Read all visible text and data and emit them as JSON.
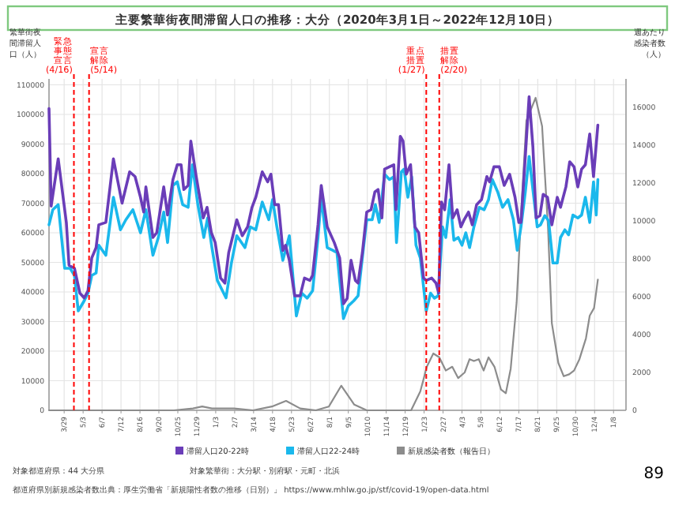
{
  "chart_data": {
    "type": "line",
    "title": "主要繁華街夜間滞留人口の推移：大分（2020年3月1日～2022年12月10日）",
    "ylabel": "繁華街夜間滞留人口（人）",
    "y2label": "週あたり感染者数（人）",
    "xlim": [
      "2020-03-01",
      "2023-01-31"
    ],
    "xticks": [
      {
        "value": "2020-03-29",
        "label": "3/29"
      },
      {
        "value": "2020-05-03",
        "label": "5/3"
      },
      {
        "value": "2020-06-07",
        "label": "6/7"
      },
      {
        "value": "2020-07-12",
        "label": "7/12"
      },
      {
        "value": "2020-08-16",
        "label": "8/16"
      },
      {
        "value": "2020-09-20",
        "label": "9/20"
      },
      {
        "value": "2020-10-25",
        "label": "10/25"
      },
      {
        "value": "2020-11-29",
        "label": "11/29"
      },
      {
        "value": "2021-01-03",
        "label": "1/3"
      },
      {
        "value": "2021-02-07",
        "label": "2/7"
      },
      {
        "value": "2021-03-14",
        "label": "3/14"
      },
      {
        "value": "2021-04-18",
        "label": "4/18"
      },
      {
        "value": "2021-05-23",
        "label": "5/23"
      },
      {
        "value": "2021-06-27",
        "label": "6/27"
      },
      {
        "value": "2021-08-01",
        "label": "8/1"
      },
      {
        "value": "2021-09-05",
        "label": "9/5"
      },
      {
        "value": "2021-10-10",
        "label": "10/10"
      },
      {
        "value": "2021-11-14",
        "label": "11/14"
      },
      {
        "value": "2021-12-19",
        "label": "12/19"
      },
      {
        "value": "2022-01-23",
        "label": "1/23"
      },
      {
        "value": "2022-02-27",
        "label": "2/27"
      },
      {
        "value": "2022-04-03",
        "label": "4/3"
      },
      {
        "value": "2022-05-08",
        "label": "5/8"
      },
      {
        "value": "2022-06-12",
        "label": "6/12"
      },
      {
        "value": "2022-07-17",
        "label": "7/17"
      },
      {
        "value": "2022-08-21",
        "label": "8/21"
      },
      {
        "value": "2022-09-25",
        "label": "9/25"
      },
      {
        "value": "2022-10-30",
        "label": "10/30"
      },
      {
        "value": "2022-12-04",
        "label": "12/4"
      },
      {
        "value": "2023-01-08",
        "label": "1/8"
      }
    ],
    "ylim": [
      0,
      112000
    ],
    "yticks": [
      0,
      10000,
      20000,
      30000,
      40000,
      50000,
      60000,
      70000,
      80000,
      90000,
      100000,
      110000
    ],
    "y2lim": [
      0,
      17500
    ],
    "y2ticks": [
      0,
      2000,
      4000,
      6000,
      8000,
      10000,
      12000,
      14000,
      16000
    ],
    "grid": true,
    "legend": "bottom",
    "ref_lines": [
      {
        "axis": "x",
        "value": "2020-04-16",
        "label": "緊急事態宣言(4/16)",
        "color": "#ff0000",
        "line_style": "dashed"
      },
      {
        "axis": "x",
        "value": "2020-05-14",
        "label": "宣言解除(5/14)",
        "color": "#ff0000",
        "line_style": "dashed"
      },
      {
        "axis": "x",
        "value": "2022-01-27",
        "label": "重点措置(1/27)",
        "color": "#ff0000",
        "line_style": "dashed"
      },
      {
        "axis": "x",
        "value": "2022-02-20",
        "label": "措置解除(2/20)",
        "color": "#ff0000",
        "line_style": "dashed"
      }
    ],
    "series": [
      {
        "name": "滞留人口20-22時",
        "color": "#6a3db8",
        "x": [
          "2020-03-01",
          "2020-03-05",
          "2020-03-18",
          "2020-04-02",
          "2020-04-07",
          "2020-04-17",
          "2020-04-27",
          "2020-05-05",
          "2020-05-12",
          "2020-05-19",
          "2020-05-27",
          "2020-06-01",
          "2020-06-14",
          "2020-06-28",
          "2020-07-14",
          "2020-07-28",
          "2020-08-07",
          "2020-08-17",
          "2020-08-23",
          "2020-08-27",
          "2020-09-09",
          "2020-09-16",
          "2020-09-29",
          "2020-10-06",
          "2020-10-16",
          "2020-10-24",
          "2020-10-31",
          "2020-11-05",
          "2020-11-13",
          "2020-11-18",
          "2020-11-28",
          "2020-12-11",
          "2020-12-18",
          "2020-12-26",
          "2021-01-02",
          "2021-01-12",
          "2021-01-20",
          "2021-01-27",
          "2021-02-11",
          "2021-02-21",
          "2021-03-03",
          "2021-03-11",
          "2021-03-18",
          "2021-03-30",
          "2021-04-09",
          "2021-04-15",
          "2021-04-22",
          "2021-04-29",
          "2021-05-07",
          "2021-05-12",
          "2021-05-19",
          "2021-05-29",
          "2021-06-08",
          "2021-06-16",
          "2021-06-26",
          "2021-07-01",
          "2021-07-11",
          "2021-07-17",
          "2021-07-28",
          "2021-08-10",
          "2021-08-20",
          "2021-08-27",
          "2021-09-03",
          "2021-09-10",
          "2021-09-18",
          "2021-09-23",
          "2021-10-01",
          "2021-10-09",
          "2021-10-17",
          "2021-10-24",
          "2021-10-30",
          "2021-11-06",
          "2021-11-11",
          "2021-11-20",
          "2021-11-28",
          "2021-12-02",
          "2021-12-10",
          "2021-12-15",
          "2021-12-21",
          "2021-12-29",
          "2022-01-06",
          "2022-01-13",
          "2022-01-22",
          "2022-01-27",
          "2022-02-06",
          "2022-02-14",
          "2022-02-19",
          "2022-02-24",
          "2022-03-02",
          "2022-03-10",
          "2022-03-17",
          "2022-03-25",
          "2022-04-01",
          "2022-04-07",
          "2022-04-15",
          "2022-04-22",
          "2022-04-30",
          "2022-05-09",
          "2022-05-19",
          "2022-05-24",
          "2022-06-01",
          "2022-06-11",
          "2022-06-20",
          "2022-06-30",
          "2022-07-10",
          "2022-07-17",
          "2022-07-21",
          "2022-07-29",
          "2022-08-05",
          "2022-08-12",
          "2022-08-18",
          "2022-08-25",
          "2022-08-31",
          "2022-09-08",
          "2022-09-16",
          "2022-09-26",
          "2022-10-02",
          "2022-10-12",
          "2022-10-19",
          "2022-10-27",
          "2022-11-03",
          "2022-11-10",
          "2022-11-17",
          "2022-11-25",
          "2022-12-02",
          "2022-12-10"
        ],
        "values": [
          102000,
          69000,
          85000,
          63500,
          49000,
          48000,
          39600,
          38000,
          40400,
          51500,
          55000,
          62700,
          63500,
          85000,
          70000,
          80600,
          79000,
          72000,
          67000,
          75500,
          58400,
          60000,
          75500,
          66000,
          78000,
          83000,
          83000,
          74600,
          76000,
          91000,
          79000,
          65000,
          68600,
          60000,
          56700,
          44700,
          43000,
          53300,
          64400,
          59000,
          62000,
          68600,
          72000,
          80600,
          77200,
          79800,
          69500,
          69500,
          54000,
          55800,
          50700,
          38700,
          38700,
          44700,
          43900,
          45600,
          62700,
          76000,
          62000,
          56700,
          51500,
          36000,
          37900,
          50700,
          43900,
          43000,
          53300,
          67000,
          67800,
          73800,
          74600,
          65000,
          81500,
          82300,
          83000,
          67800,
          92600,
          91000,
          79800,
          83000,
          62000,
          60000,
          44700,
          43900,
          44700,
          43000,
          39600,
          70400,
          67800,
          83000,
          65000,
          67800,
          62000,
          64400,
          67000,
          62700,
          69500,
          71200,
          79000,
          77200,
          82300,
          82300,
          76000,
          79800,
          72000,
          63500,
          63500,
          85800,
          106000,
          89000,
          65000,
          65800,
          73000,
          72000,
          62700,
          72000,
          68600,
          75500,
          84000,
          82300,
          75500,
          81500,
          83000,
          93400,
          79000,
          96400
        ]
      },
      {
        "name": "滞留人口22-24時",
        "color": "#1ab8ec",
        "x": [
          "2020-03-01",
          "2020-03-08",
          "2020-03-18",
          "2020-03-30",
          "2020-04-09",
          "2020-04-17",
          "2020-04-24",
          "2020-05-05",
          "2020-05-12",
          "2020-05-19",
          "2020-05-27",
          "2020-06-01",
          "2020-06-14",
          "2020-06-28",
          "2020-07-11",
          "2020-07-21",
          "2020-08-03",
          "2020-08-17",
          "2020-08-27",
          "2020-09-09",
          "2020-09-19",
          "2020-09-29",
          "2020-10-06",
          "2020-10-16",
          "2020-10-24",
          "2020-11-03",
          "2020-11-13",
          "2020-11-21",
          "2020-12-01",
          "2020-12-12",
          "2020-12-19",
          "2020-12-27",
          "2021-01-06",
          "2021-01-22",
          "2021-02-01",
          "2021-02-11",
          "2021-02-26",
          "2021-03-08",
          "2021-03-18",
          "2021-03-30",
          "2021-04-11",
          "2021-04-18",
          "2021-04-26",
          "2021-05-07",
          "2021-05-19",
          "2021-06-01",
          "2021-06-11",
          "2021-06-21",
          "2021-07-01",
          "2021-07-11",
          "2021-07-17",
          "2021-07-28",
          "2021-08-07",
          "2021-08-15",
          "2021-08-27",
          "2021-09-05",
          "2021-09-15",
          "2021-09-23",
          "2021-10-03",
          "2021-10-09",
          "2021-10-19",
          "2021-10-25",
          "2021-11-01",
          "2021-11-11",
          "2021-11-20",
          "2021-11-28",
          "2021-12-03",
          "2021-12-12",
          "2021-12-17",
          "2021-12-24",
          "2021-12-31",
          "2022-01-08",
          "2022-01-16",
          "2022-01-27",
          "2022-02-04",
          "2022-02-11",
          "2022-02-18",
          "2022-02-26",
          "2022-03-04",
          "2022-03-12",
          "2022-03-19",
          "2022-03-27",
          "2022-04-03",
          "2022-04-10",
          "2022-04-17",
          "2022-04-25",
          "2022-05-05",
          "2022-05-14",
          "2022-05-22",
          "2022-05-29",
          "2022-06-08",
          "2022-06-17",
          "2022-06-27",
          "2022-07-07",
          "2022-07-14",
          "2022-07-21",
          "2022-07-29",
          "2022-08-05",
          "2022-08-12",
          "2022-08-20",
          "2022-08-26",
          "2022-09-03",
          "2022-09-10",
          "2022-09-18",
          "2022-09-26",
          "2022-10-02",
          "2022-10-10",
          "2022-10-17",
          "2022-10-25",
          "2022-11-03",
          "2022-11-10",
          "2022-11-17",
          "2022-11-25",
          "2022-12-02",
          "2022-12-07",
          "2022-12-10"
        ],
        "values": [
          62700,
          67800,
          69500,
          48000,
          48000,
          45600,
          33600,
          37000,
          39600,
          45600,
          46400,
          55800,
          52400,
          72000,
          61000,
          64400,
          67800,
          60000,
          67800,
          52400,
          58400,
          67000,
          56700,
          76000,
          77200,
          69500,
          68600,
          83000,
          69500,
          58400,
          65000,
          55000,
          43900,
          38000,
          49800,
          59000,
          55000,
          62000,
          61000,
          70400,
          64400,
          71200,
          62000,
          50700,
          59000,
          31900,
          39600,
          37900,
          40400,
          58400,
          72000,
          55000,
          54100,
          53300,
          31000,
          35300,
          37000,
          38700,
          55000,
          64400,
          64400,
          69500,
          63500,
          79800,
          78000,
          78900,
          56700,
          80600,
          81500,
          72000,
          78900,
          55800,
          51500,
          33600,
          39600,
          37900,
          38700,
          62000,
          58400,
          71200,
          57500,
          58400,
          55800,
          60000,
          55000,
          62000,
          68600,
          67800,
          71200,
          78000,
          73800,
          68600,
          71200,
          64400,
          54100,
          62000,
          73800,
          85800,
          74600,
          62000,
          62700,
          65800,
          64100,
          49800,
          49800,
          58400,
          61000,
          59300,
          66000,
          65000,
          66000,
          72000,
          63500,
          77200,
          66000,
          78000
        ]
      },
      {
        "name": "新規感染者数（報告日）",
        "color": "#8c8c8c",
        "axis": "y2",
        "x": [
          "2020-03-01",
          "2020-10-18",
          "2020-11-22",
          "2020-12-09",
          "2020-12-27",
          "2021-01-13",
          "2021-02-06",
          "2021-03-13",
          "2021-04-17",
          "2021-05-13",
          "2021-06-08",
          "2021-07-07",
          "2021-07-31",
          "2021-08-23",
          "2021-09-16",
          "2021-10-09",
          "2021-12-30",
          "2022-01-16",
          "2022-01-28",
          "2022-02-09",
          "2022-02-20",
          "2022-03-04",
          "2022-03-16",
          "2022-03-27",
          "2022-04-08",
          "2022-04-17",
          "2022-04-25",
          "2022-05-04",
          "2022-05-13",
          "2022-05-22",
          "2022-06-02",
          "2022-06-14",
          "2022-06-23",
          "2022-07-02",
          "2022-07-13",
          "2022-07-22",
          "2022-07-31",
          "2022-08-17",
          "2022-08-29",
          "2022-09-09",
          "2022-09-16",
          "2022-09-28",
          "2022-10-08",
          "2022-10-18",
          "2022-10-27",
          "2022-11-06",
          "2022-11-18",
          "2022-11-25",
          "2022-12-03",
          "2022-12-10"
        ],
        "values": [
          0,
          0,
          100,
          200,
          100,
          100,
          100,
          0,
          200,
          500,
          100,
          0,
          200,
          1300,
          300,
          0,
          0,
          1000,
          2300,
          3000,
          2800,
          2100,
          2300,
          1700,
          2000,
          2700,
          2600,
          2700,
          2100,
          2800,
          2300,
          1100,
          900,
          2200,
          5700,
          10800,
          15300,
          16500,
          15000,
          9600,
          4600,
          2500,
          1800,
          1900,
          2100,
          2700,
          3800,
          5000,
          5400,
          6900
        ]
      }
    ],
    "annotations": [
      "対象都道府県：44 大分県",
      "対象繁華街：大分駅・別府駅・元町・北浜",
      "都道府県別新規感染者数出典：厚生労働省「新規陽性者数の推移（日別）」 https://www.mhlw.go.jp/stf/covid-19/open-data.html",
      "89"
    ]
  }
}
